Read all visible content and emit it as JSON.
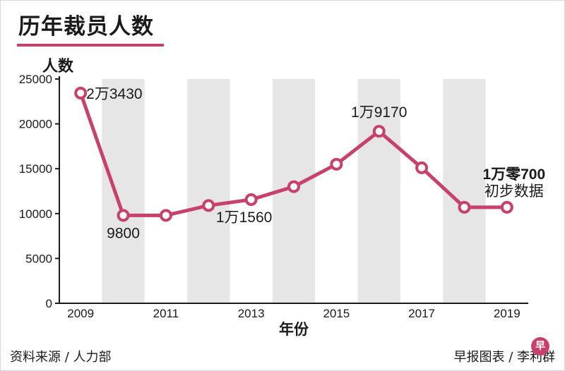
{
  "chart_data": {
    "type": "line",
    "title": "历年裁员人数",
    "ylabel": "人数",
    "xlabel": "年份",
    "x": [
      2009,
      2010,
      2011,
      2012,
      2013,
      2014,
      2015,
      2016,
      2017,
      2018,
      2019
    ],
    "values": [
      23430,
      9800,
      9800,
      10900,
      11560,
      13000,
      15500,
      19170,
      15100,
      10700,
      10700
    ],
    "ylim": [
      0,
      25000
    ],
    "yticks": [
      0,
      5000,
      10000,
      15000,
      20000,
      25000
    ],
    "xtick_labels": [
      "2009",
      "2011",
      "2013",
      "2015",
      "2017",
      "2019"
    ],
    "annotations": [
      {
        "x": 2009,
        "text": "2万3430"
      },
      {
        "x": 2010,
        "text": "9800"
      },
      {
        "x": 2013,
        "text": "1万1560"
      },
      {
        "x": 2016,
        "text": "1万9170"
      },
      {
        "x": 2019,
        "text": "1万零700",
        "bold": true,
        "note": "初步数据"
      }
    ],
    "colors": {
      "line": "#c8416a",
      "band": "#e6e6e6"
    }
  },
  "footer": {
    "source": "资料来源 / 人力部",
    "credit": "早报图表 / 李利群",
    "logo": "早"
  }
}
